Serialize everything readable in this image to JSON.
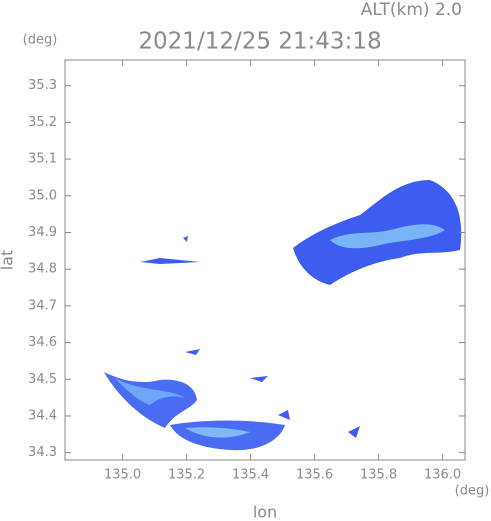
{
  "chart_data": {
    "type": "radar-map",
    "title": "2021/12/25 21:43:18",
    "subtitle": "ALT(km) 2.0",
    "x_label": "lon",
    "y_label": "lat",
    "x_unit": "(deg)",
    "y_unit": "(deg)",
    "xlim": [
      134.82,
      136.07
    ],
    "xticks": [
      {
        "value": 135.0,
        "label": "135.0"
      },
      135.2,
      135.4,
      135.6,
      135.8,
      {
        "value": 136.0,
        "label": "136.0"
      }
    ],
    "ylim": [
      34.28,
      35.37
    ],
    "yticks": [
      34.3,
      34.4,
      34.5,
      34.6,
      34.7,
      34.8,
      34.9,
      {
        "value": 35.0,
        "label": "35.0"
      },
      35.1,
      35.2,
      35.3
    ],
    "frame_color": "#888888"
  }
}
